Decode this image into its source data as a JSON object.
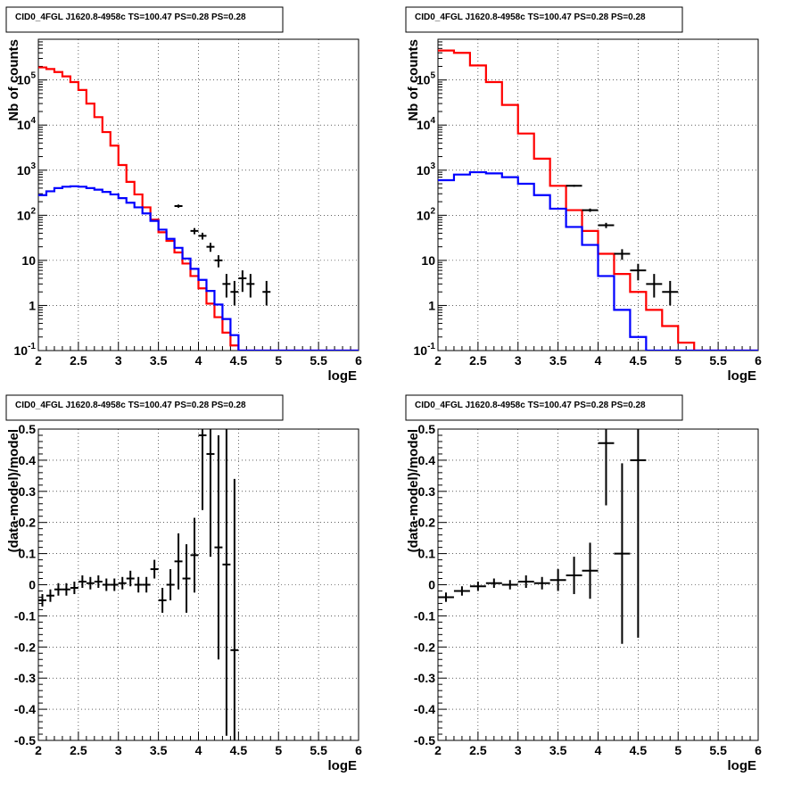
{
  "panel_title": "CID0_4FGL J1620.8-4958c TS=100.47 PS=0.28 PS=0.28",
  "xlabel": "logE",
  "ylabel_counts": "Nb of counts",
  "ylabel_resid": "(data-model)/model",
  "x_ticks": [
    "2",
    "2.5",
    "3",
    "3.5",
    "4",
    "4.5",
    "5",
    "5.5",
    "6"
  ],
  "y_ticks_log": [
    {
      "v": 0.1,
      "label": "10",
      "sup": "-1"
    },
    {
      "v": 1,
      "label": "1",
      "sup": ""
    },
    {
      "v": 10,
      "label": "10",
      "sup": ""
    },
    {
      "v": 100,
      "label": "10",
      "sup": "2"
    },
    {
      "v": 1000,
      "label": "10",
      "sup": "3"
    },
    {
      "v": 10000,
      "label": "10",
      "sup": "4"
    },
    {
      "v": 100000,
      "label": "10",
      "sup": "5"
    }
  ],
  "y_ticks_resid": [
    "-0.5",
    "-0.4",
    "-0.3",
    "-0.2",
    "-0.1",
    "0",
    "0.1",
    "0.2",
    "0.3",
    "0.4",
    "0.5"
  ],
  "colors": {
    "total_model": "#ff0000",
    "source_model": "#0000ff",
    "data": "#000000",
    "grid": "#000000"
  },
  "chart_data": [
    {
      "type": "line",
      "name": "counts-fine-binning",
      "scale": "log",
      "xlim": [
        2,
        6
      ],
      "ylim": [
        0.1,
        800000
      ],
      "bin_width": 0.1,
      "bin_edges_start": 2.0,
      "series": [
        {
          "role": "total_model",
          "color": "#ff0000",
          "values": [
            190000,
            175000,
            150000,
            120000,
            90000,
            60000,
            30000,
            15000,
            7000,
            3500,
            1300,
            550,
            290,
            150,
            80,
            42,
            27,
            15,
            8.5,
            4.5,
            2.4,
            1.1,
            0.55,
            0.25,
            0.13,
            0.1,
            0.1,
            0.1,
            0.1,
            0.1,
            0.1,
            0.1,
            0.1,
            0.1,
            0.1,
            0.1,
            0.1,
            0.1,
            0.1,
            0.1
          ]
        },
        {
          "role": "source_model",
          "color": "#0000ff",
          "values": [
            280,
            340,
            400,
            430,
            440,
            430,
            400,
            370,
            330,
            290,
            240,
            190,
            150,
            110,
            75,
            48,
            30,
            19,
            11,
            6.5,
            3.7,
            2.1,
            1.05,
            0.5,
            0.22,
            0.1,
            0.1,
            0.1,
            0.1,
            0.1,
            0.1,
            0.1,
            0.1,
            0.1,
            0.1,
            0.1,
            0.1,
            0.1,
            0.1,
            0.1
          ]
        }
      ],
      "points": [
        {
          "x": 3.75,
          "y": 160,
          "yerr_lo": 13,
          "yerr_hi": 13
        },
        {
          "x": 3.95,
          "y": 45,
          "yerr_lo": 7,
          "yerr_hi": 7
        },
        {
          "x": 4.05,
          "y": 35,
          "yerr_lo": 6,
          "yerr_hi": 6
        },
        {
          "x": 4.15,
          "y": 20,
          "yerr_lo": 4.5,
          "yerr_hi": 4.5
        },
        {
          "x": 4.25,
          "y": 10,
          "yerr_lo": 3,
          "yerr_hi": 3
        },
        {
          "x": 4.35,
          "y": 3,
          "yerr_lo": 1.5,
          "yerr_hi": 2
        },
        {
          "x": 4.45,
          "y": 2,
          "yerr_lo": 1,
          "yerr_hi": 1.5
        },
        {
          "x": 4.55,
          "y": 4,
          "yerr_lo": 2,
          "yerr_hi": 2
        },
        {
          "x": 4.65,
          "y": 3,
          "yerr_lo": 1.5,
          "yerr_hi": 2
        },
        {
          "x": 4.85,
          "y": 2,
          "yerr_lo": 1,
          "yerr_hi": 1.5
        }
      ]
    },
    {
      "type": "line",
      "name": "counts-coarse-binning",
      "scale": "log",
      "xlim": [
        2,
        6
      ],
      "ylim": [
        0.1,
        800000
      ],
      "bin_width": 0.2,
      "bin_edges_start": 2.0,
      "series": [
        {
          "role": "total_model",
          "color": "#ff0000",
          "values": [
            450000,
            400000,
            210000,
            90000,
            28000,
            6500,
            1800,
            450,
            130,
            45,
            14,
            5,
            2,
            0.8,
            0.35,
            0.15,
            0.1,
            0.1,
            0.1,
            0.1
          ]
        },
        {
          "role": "source_model",
          "color": "#0000ff",
          "values": [
            600,
            800,
            900,
            850,
            700,
            500,
            280,
            140,
            55,
            22,
            4.5,
            0.8,
            0.2,
            0.1,
            0.1,
            0.1,
            0.1,
            0.1,
            0.1,
            0.1
          ]
        }
      ],
      "points": [
        {
          "x": 3.7,
          "y": 450,
          "yerr_lo": 21,
          "yerr_hi": 21
        },
        {
          "x": 3.9,
          "y": 130,
          "yerr_lo": 11,
          "yerr_hi": 11
        },
        {
          "x": 4.1,
          "y": 60,
          "yerr_lo": 8,
          "yerr_hi": 8
        },
        {
          "x": 4.3,
          "y": 14,
          "yerr_lo": 3.7,
          "yerr_hi": 3.7
        },
        {
          "x": 4.5,
          "y": 6,
          "yerr_lo": 2.4,
          "yerr_hi": 2.4
        },
        {
          "x": 4.7,
          "y": 3,
          "yerr_lo": 1.5,
          "yerr_hi": 2
        },
        {
          "x": 4.9,
          "y": 2,
          "yerr_lo": 1,
          "yerr_hi": 1.5
        }
      ]
    },
    {
      "type": "scatter",
      "name": "residuals-fine-binning",
      "scale": "linear",
      "xlim": [
        2,
        6
      ],
      "ylim": [
        -0.5,
        0.5
      ],
      "bin_width": 0.1,
      "points": [
        {
          "x": 2.05,
          "y": -0.05,
          "yerr": 0.02
        },
        {
          "x": 2.15,
          "y": -0.035,
          "yerr": 0.02
        },
        {
          "x": 2.25,
          "y": -0.015,
          "yerr": 0.02
        },
        {
          "x": 2.35,
          "y": -0.015,
          "yerr": 0.02
        },
        {
          "x": 2.45,
          "y": -0.01,
          "yerr": 0.02
        },
        {
          "x": 2.55,
          "y": 0.01,
          "yerr": 0.02
        },
        {
          "x": 2.65,
          "y": 0.005,
          "yerr": 0.02
        },
        {
          "x": 2.75,
          "y": 0.01,
          "yerr": 0.02
        },
        {
          "x": 2.85,
          "y": 0.0,
          "yerr": 0.02
        },
        {
          "x": 2.95,
          "y": 0.0,
          "yerr": 0.02
        },
        {
          "x": 3.05,
          "y": 0.005,
          "yerr": 0.02
        },
        {
          "x": 3.15,
          "y": 0.02,
          "yerr": 0.025
        },
        {
          "x": 3.25,
          "y": 0.0,
          "yerr": 0.025
        },
        {
          "x": 3.35,
          "y": 0.0,
          "yerr": 0.025
        },
        {
          "x": 3.45,
          "y": 0.05,
          "yerr": 0.03
        },
        {
          "x": 3.55,
          "y": -0.05,
          "yerr": 0.04
        },
        {
          "x": 3.65,
          "y": 0.0,
          "yerr": 0.05
        },
        {
          "x": 3.75,
          "y": 0.075,
          "yerr": 0.09
        },
        {
          "x": 3.85,
          "y": 0.02,
          "yerr": 0.11
        },
        {
          "x": 3.95,
          "y": 0.095,
          "yerr": 0.12
        },
        {
          "x": 4.05,
          "y": 0.48,
          "yerr": 0.24
        },
        {
          "x": 4.15,
          "y": 0.42,
          "yerr": 0.33
        },
        {
          "x": 4.25,
          "y": 0.12,
          "yerr": 0.36
        },
        {
          "x": 4.35,
          "y": 0.065,
          "yerr": 0.55
        },
        {
          "x": 4.45,
          "y": -0.21,
          "yerr": 0.55
        }
      ]
    },
    {
      "type": "scatter",
      "name": "residuals-coarse-binning",
      "scale": "linear",
      "xlim": [
        2,
        6
      ],
      "ylim": [
        -0.5,
        0.5
      ],
      "bin_width": 0.2,
      "points": [
        {
          "x": 2.1,
          "y": -0.04,
          "yerr": 0.015
        },
        {
          "x": 2.3,
          "y": -0.02,
          "yerr": 0.015
        },
        {
          "x": 2.5,
          "y": -0.005,
          "yerr": 0.015
        },
        {
          "x": 2.7,
          "y": 0.005,
          "yerr": 0.015
        },
        {
          "x": 2.9,
          "y": 0.0,
          "yerr": 0.015
        },
        {
          "x": 3.1,
          "y": 0.01,
          "yerr": 0.02
        },
        {
          "x": 3.3,
          "y": 0.005,
          "yerr": 0.02
        },
        {
          "x": 3.5,
          "y": 0.015,
          "yerr": 0.035
        },
        {
          "x": 3.7,
          "y": 0.03,
          "yerr": 0.06
        },
        {
          "x": 3.9,
          "y": 0.045,
          "yerr": 0.09
        },
        {
          "x": 4.1,
          "y": 0.455,
          "yerr": 0.2
        },
        {
          "x": 4.3,
          "y": 0.1,
          "yerr": 0.29
        },
        {
          "x": 4.5,
          "y": 0.4,
          "yerr": 0.57
        }
      ]
    }
  ]
}
